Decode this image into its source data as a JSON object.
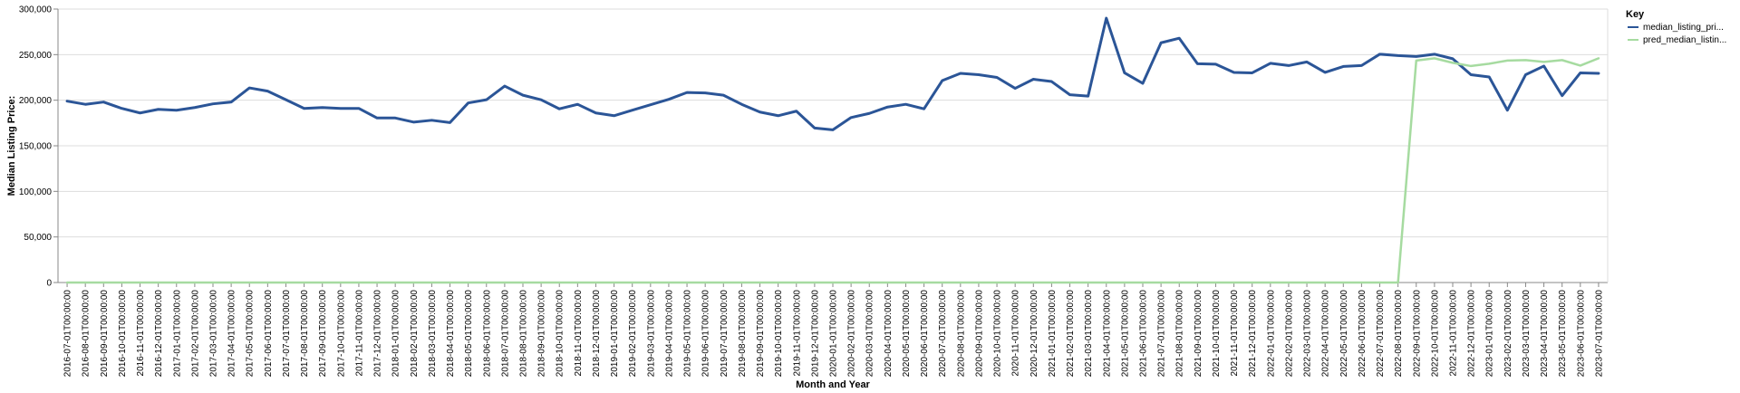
{
  "chart_data": {
    "type": "line",
    "xlabel": "Month and Year",
    "ylabel": "Median Listing Price:",
    "ylim": [
      0,
      300000
    ],
    "yticks": [
      "0",
      "50,000",
      "100,000",
      "150,000",
      "200,000",
      "250,000",
      "300,000"
    ],
    "grid": "horizontal",
    "legend": {
      "title": "Key",
      "placement": "top-right"
    },
    "categories": [
      "2016-07-01T00:00:00",
      "2016-08-01T00:00:00",
      "2016-09-01T00:00:00",
      "2016-10-01T00:00:00",
      "2016-11-01T00:00:00",
      "2016-12-01T00:00:00",
      "2017-01-01T00:00:00",
      "2017-02-01T00:00:00",
      "2017-03-01T00:00:00",
      "2017-04-01T00:00:00",
      "2017-05-01T00:00:00",
      "2017-06-01T00:00:00",
      "2017-07-01T00:00:00",
      "2017-08-01T00:00:00",
      "2017-09-01T00:00:00",
      "2017-10-01T00:00:00",
      "2017-11-01T00:00:00",
      "2017-12-01T00:00:00",
      "2018-01-01T00:00:00",
      "2018-02-01T00:00:00",
      "2018-03-01T00:00:00",
      "2018-04-01T00:00:00",
      "2018-05-01T00:00:00",
      "2018-06-01T00:00:00",
      "2018-07-01T00:00:00",
      "2018-08-01T00:00:00",
      "2018-09-01T00:00:00",
      "2018-10-01T00:00:00",
      "2018-11-01T00:00:00",
      "2018-12-01T00:00:00",
      "2019-01-01T00:00:00",
      "2019-02-01T00:00:00",
      "2019-03-01T00:00:00",
      "2019-04-01T00:00:00",
      "2019-05-01T00:00:00",
      "2019-06-01T00:00:00",
      "2019-07-01T00:00:00",
      "2019-08-01T00:00:00",
      "2019-09-01T00:00:00",
      "2019-10-01T00:00:00",
      "2019-11-01T00:00:00",
      "2019-12-01T00:00:00",
      "2020-01-01T00:00:00",
      "2020-02-01T00:00:00",
      "2020-03-01T00:00:00",
      "2020-04-01T00:00:00",
      "2020-05-01T00:00:00",
      "2020-06-01T00:00:00",
      "2020-07-01T00:00:00",
      "2020-08-01T00:00:00",
      "2020-09-01T00:00:00",
      "2020-10-01T00:00:00",
      "2020-11-01T00:00:00",
      "2020-12-01T00:00:00",
      "2021-01-01T00:00:00",
      "2021-02-01T00:00:00",
      "2021-03-01T00:00:00",
      "2021-04-01T00:00:00",
      "2021-05-01T00:00:00",
      "2021-06-01T00:00:00",
      "2021-07-01T00:00:00",
      "2021-08-01T00:00:00",
      "2021-09-01T00:00:00",
      "2021-10-01T00:00:00",
      "2021-11-01T00:00:00",
      "2021-12-01T00:00:00",
      "2022-01-01T00:00:00",
      "2022-02-01T00:00:00",
      "2022-03-01T00:00:00",
      "2022-04-01T00:00:00",
      "2022-05-01T00:00:00",
      "2022-06-01T00:00:00",
      "2022-07-01T00:00:00",
      "2022-08-01T00:00:00",
      "2022-09-01T00:00:00",
      "2022-10-01T00:00:00",
      "2022-11-01T00:00:00",
      "2022-12-01T00:00:00",
      "2023-01-01T00:00:00",
      "2023-02-01T00:00:00",
      "2023-03-01T00:00:00",
      "2023-04-01T00:00:00",
      "2023-05-01T00:00:00",
      "2023-06-01T00:00:00",
      "2023-07-01T00:00:00"
    ],
    "series": [
      {
        "name": "median_listing_pri...",
        "color": "#2b5597",
        "values": [
          199000,
          195500,
          198000,
          191000,
          186000,
          190000,
          189000,
          192000,
          196000,
          198000,
          213500,
          210000,
          200500,
          191000,
          192000,
          191000,
          191000,
          180500,
          180500,
          176000,
          178000,
          175500,
          197000,
          200500,
          215500,
          205500,
          200500,
          190500,
          195500,
          186000,
          183000,
          189000,
          195000,
          201000,
          208500,
          208000,
          205500,
          195500,
          187000,
          183000,
          188000,
          169500,
          167500,
          181000,
          185500,
          192500,
          195500,
          190500,
          221500,
          229500,
          228000,
          225000,
          213000,
          223000,
          220500,
          206000,
          204500,
          290000,
          230000,
          218500,
          263000,
          268000,
          240000,
          239500,
          230500,
          230000,
          240500,
          238000,
          242000,
          230500,
          237000,
          238000,
          250500,
          249000,
          248000,
          250500,
          245500,
          228000,
          225500,
          189000,
          228000,
          237500,
          205000,
          230000,
          229500
        ]
      },
      {
        "name": "pred_median_listin...",
        "color": "#a6dba0",
        "values": [
          0,
          0,
          0,
          0,
          0,
          0,
          0,
          0,
          0,
          0,
          0,
          0,
          0,
          0,
          0,
          0,
          0,
          0,
          0,
          0,
          0,
          0,
          0,
          0,
          0,
          0,
          0,
          0,
          0,
          0,
          0,
          0,
          0,
          0,
          0,
          0,
          0,
          0,
          0,
          0,
          0,
          0,
          0,
          0,
          0,
          0,
          0,
          0,
          0,
          0,
          0,
          0,
          0,
          0,
          0,
          0,
          0,
          0,
          0,
          0,
          0,
          0,
          0,
          0,
          0,
          0,
          0,
          0,
          0,
          0,
          0,
          0,
          0,
          0,
          243500,
          246000,
          241000,
          237500,
          240000,
          243500,
          244000,
          242000,
          244000,
          238000,
          246000
        ]
      }
    ]
  }
}
